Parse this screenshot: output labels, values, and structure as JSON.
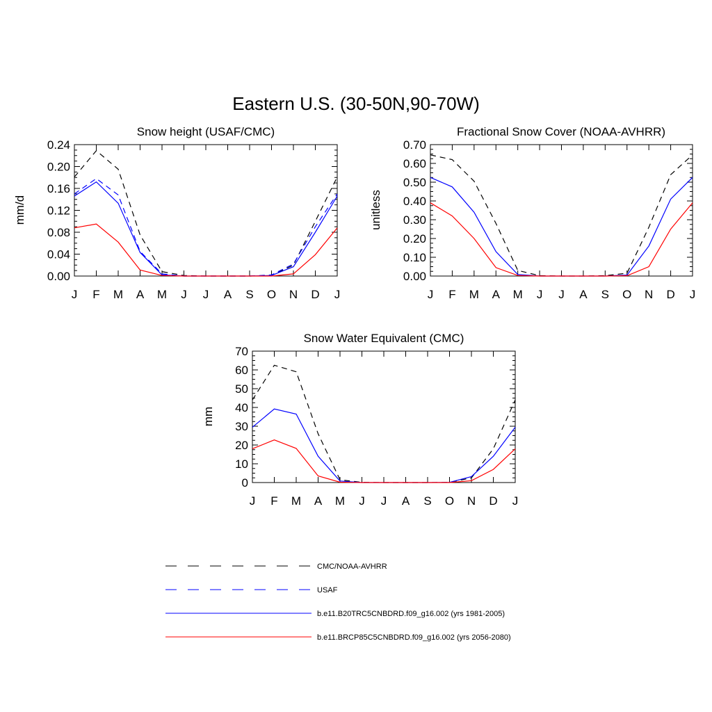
{
  "title": "Eastern U.S. (30-50N,90-70W)",
  "colors": {
    "obs": "#000000",
    "usaf": "#0000ff",
    "historical": "#0000ff",
    "future": "#ff0000"
  },
  "legend": {
    "placement": "bottom",
    "entries": [
      {
        "label": "CMC/NOAA-AVHRR",
        "color": "#000000",
        "dash": "dashed"
      },
      {
        "label": "USAF",
        "color": "#0000ff",
        "dash": "dashed"
      },
      {
        "label": "b.e11.B20TRC5CNBDRD.f09_g16.002 (yrs 1981-2005)",
        "color": "#0000ff",
        "dash": "solid"
      },
      {
        "label": "b.e11.BRCP85C5CNBDRD.f09_g16.002 (yrs 2056-2080)",
        "color": "#ff0000",
        "dash": "solid"
      }
    ]
  },
  "chart_data": [
    {
      "type": "line",
      "title": "Snow height (USAF/CMC)",
      "xlabel": "",
      "ylabel": "mm/d",
      "categories": [
        "J",
        "F",
        "M",
        "A",
        "M",
        "J",
        "J",
        "A",
        "S",
        "O",
        "N",
        "D",
        "J"
      ],
      "ylim": [
        0,
        0.24
      ],
      "yticks": [
        "0.00",
        "0.04",
        "0.08",
        "0.12",
        "0.16",
        "0.20",
        "0.24"
      ],
      "series": [
        {
          "name": "CMC/NOAA-AVHRR",
          "values": [
            0.181,
            0.229,
            0.195,
            0.075,
            0.008,
            0.001,
            0.0,
            0.0,
            0.0,
            0.001,
            0.02,
            0.1,
            0.181
          ]
        },
        {
          "name": "USAF",
          "values": [
            0.15,
            0.178,
            0.148,
            0.045,
            0.004,
            0.0,
            0.0,
            0.0,
            0.0,
            0.002,
            0.022,
            0.09,
            0.15
          ]
        },
        {
          "name": "b.e11.B20TRC5CNBDRD.f09_g16.002 (yrs 1981-2005)",
          "values": [
            0.146,
            0.172,
            0.133,
            0.043,
            0.002,
            0.0,
            0.0,
            0.0,
            0.0,
            0.001,
            0.017,
            0.08,
            0.146
          ]
        },
        {
          "name": "b.e11.BRCP85C5CNBDRD.f09_g16.002 (yrs 2056-2080)",
          "values": [
            0.088,
            0.095,
            0.062,
            0.011,
            0.001,
            0.0,
            0.0,
            0.0,
            0.0,
            0.0,
            0.004,
            0.039,
            0.088
          ]
        }
      ]
    },
    {
      "type": "line",
      "title": "Fractional Snow Cover (NOAA-AVHRR)",
      "xlabel": "",
      "ylabel": "unitless",
      "categories": [
        "J",
        "F",
        "M",
        "A",
        "M",
        "J",
        "J",
        "A",
        "S",
        "O",
        "N",
        "D",
        "J"
      ],
      "ylim": [
        0,
        0.7
      ],
      "yticks": [
        "0.00",
        "0.10",
        "0.20",
        "0.30",
        "0.40",
        "0.50",
        "0.60",
        "0.70"
      ],
      "series": [
        {
          "name": "CMC/NOAA-AVHRR",
          "values": [
            0.645,
            0.62,
            0.505,
            0.28,
            0.03,
            0.002,
            0.0,
            0.0,
            0.002,
            0.015,
            0.26,
            0.54,
            0.645
          ]
        },
        {
          "name": "b.e11.B20TRC5CNBDRD.f09_g16.002 (yrs 1981-2005)",
          "values": [
            0.525,
            0.475,
            0.34,
            0.13,
            0.008,
            0.0,
            0.0,
            0.0,
            0.0,
            0.005,
            0.16,
            0.41,
            0.525
          ]
        },
        {
          "name": "b.e11.BRCP85C5CNBDRD.f09_g16.002 (yrs 2056-2080)",
          "values": [
            0.39,
            0.32,
            0.2,
            0.045,
            0.003,
            0.0,
            0.0,
            0.0,
            0.0,
            0.002,
            0.05,
            0.25,
            0.39
          ]
        }
      ]
    },
    {
      "type": "line",
      "title": "Snow Water Equivalent (CMC)",
      "xlabel": "",
      "ylabel": "mm",
      "categories": [
        "J",
        "F",
        "M",
        "A",
        "M",
        "J",
        "J",
        "A",
        "S",
        "O",
        "N",
        "D",
        "J"
      ],
      "ylim": [
        0,
        70
      ],
      "yticks": [
        "0",
        "10",
        "20",
        "30",
        "40",
        "50",
        "60",
        "70"
      ],
      "series": [
        {
          "name": "CMC/NOAA-AVHRR",
          "values": [
            44,
            62.5,
            59,
            26,
            1.5,
            0.1,
            0,
            0,
            0,
            0.1,
            2.5,
            18,
            44
          ]
        },
        {
          "name": "b.e11.B20TRC5CNBDRD.f09_g16.002 (yrs 1981-2005)",
          "values": [
            29.5,
            39.2,
            36.5,
            14,
            0.8,
            0,
            0,
            0,
            0,
            0.1,
            3.2,
            14,
            29.5
          ]
        },
        {
          "name": "b.e11.BRCP85C5CNBDRD.f09_g16.002 (yrs 2056-2080)",
          "values": [
            18,
            22.7,
            18.2,
            3.5,
            0.2,
            0,
            0,
            0,
            0,
            0,
            1,
            7,
            18
          ]
        }
      ]
    }
  ]
}
